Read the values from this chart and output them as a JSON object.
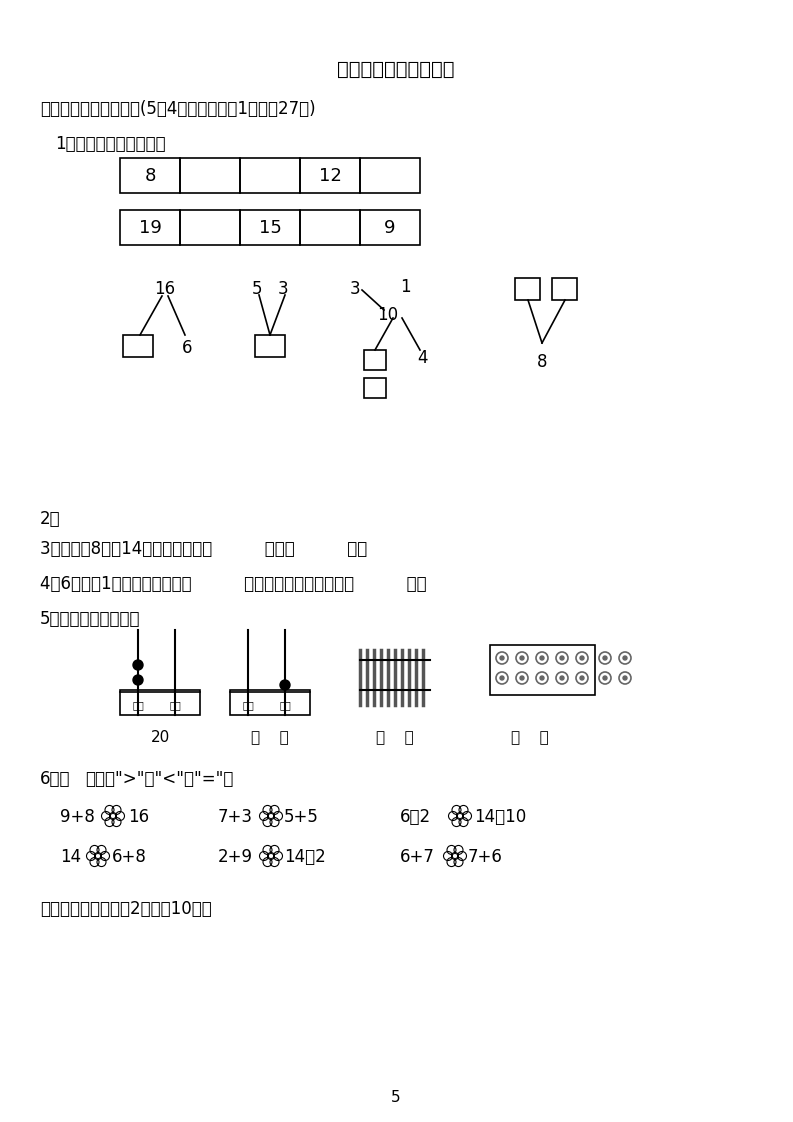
{
  "title": "上海市名校期末测试卷",
  "bg_color": "#ffffff",
  "text_color": "#000000",
  "section1_header": "一、填一填，画一画。(5题4分，其余每空1分，共27分)",
  "q1_label": "1．按数的顺序填一填。",
  "q1_row1": [
    "8",
    "",
    "",
    "12",
    ""
  ],
  "q1_row2": [
    "19",
    "",
    "15",
    "",
    "9"
  ],
  "q2_label": "2．",
  "q3_text": "3．写出比8大比14小的两个数：（          ）、（          ）。",
  "q4_text": "4．6个一和1个十组成的数是（          ），它后面的一个数是（          ）。",
  "q5_label": "5．画一画，写一写。",
  "q5_bottom": "20            （    ）              （    ）              （    ）",
  "q6_label": "6．在",
  "q6_line1": "9+8        16          7+3        5+5          6－2        14－10",
  "q6_line2": "14        6+8          2+9        14－2          6+7        7+6",
  "section3_header": "三、我会选。（每题2分，共10分）"
}
